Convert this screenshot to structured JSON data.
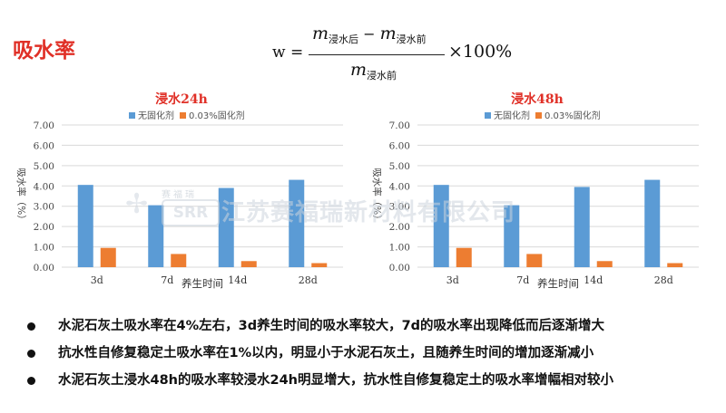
{
  "title": "吸水率",
  "formula": {
    "lhs": "w =",
    "m": "m",
    "sub_after": "浸水后",
    "minus": "−",
    "sub_before": "浸水前",
    "times": "×100%"
  },
  "watermark": {
    "cn_small": "赛福瑞",
    "logo_box": "SRR",
    "text": "江苏赛福瑞新材料有限公司"
  },
  "colors": {
    "series_blue": "#5b9bd5",
    "series_orange": "#ed7d31",
    "title_red": "#e03027"
  },
  "chart_data": [
    {
      "type": "bar",
      "title": "浸水24h",
      "categories": [
        "3d",
        "7d",
        "14d",
        "28d"
      ],
      "series": [
        {
          "name": "无固化剂",
          "values": [
            4.05,
            3.05,
            3.9,
            4.3
          ]
        },
        {
          "name": "0.03%固化剂",
          "values": [
            0.95,
            0.65,
            0.3,
            0.2
          ]
        }
      ],
      "xlabel": "养生时间",
      "ylabel": "吸水率（%）",
      "ylim": [
        0,
        7
      ],
      "yticks": [
        "0.00",
        "1.00",
        "2.00",
        "3.00",
        "4.00",
        "5.00",
        "6.00",
        "7.00"
      ],
      "grid": true,
      "legend": "top"
    },
    {
      "type": "bar",
      "title": "浸水48h",
      "categories": [
        "3d",
        "7d",
        "14d",
        "28d"
      ],
      "series": [
        {
          "name": "无固化剂",
          "values": [
            4.05,
            3.05,
            3.95,
            4.3
          ]
        },
        {
          "name": "0.03%固化剂",
          "values": [
            0.95,
            0.65,
            0.3,
            0.2
          ]
        }
      ],
      "xlabel": "养生时间",
      "ylabel": "吸水率（%）",
      "ylim": [
        0,
        7
      ],
      "yticks": [
        "0.00",
        "1.00",
        "2.00",
        "3.00",
        "4.00",
        "5.00",
        "6.00",
        "7.00"
      ],
      "grid": true,
      "legend": "top"
    }
  ],
  "bullets": [
    "水泥石灰土吸水率在4%左右，3d养生时间的吸水率较大，7d的吸水率出现降低而后逐渐增大",
    "抗水性自修复稳定土吸水率在1%以内，明显小于水泥石灰土，且随养生时间的增加逐渐减小",
    "水泥石灰土浸水48h的吸水率较浸水24h明显增大，抗水性自修复稳定土的吸水率增幅相对较小"
  ]
}
